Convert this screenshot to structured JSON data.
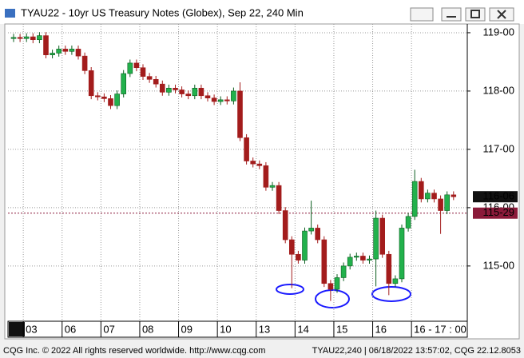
{
  "window": {
    "title": "TYAU22 - 10yr US Treasury Notes (Globex), Sep 22, 240 Min"
  },
  "footer": {
    "left": "CQG Inc. © 2022 All rights reserved worldwide. http://www.cqg.com",
    "right": "TYAU22,240 | 06/18/2022 13:57:02, CQG 22.12.8053"
  },
  "chart_data": {
    "type": "candlestick",
    "up_color": "#22b14c",
    "down_color": "#a31c1c",
    "grid": true,
    "categories": [
      null,
      null,
      "03",
      null,
      null,
      null,
      null,
      null,
      "06",
      null,
      null,
      null,
      null,
      null,
      "07",
      null,
      null,
      null,
      null,
      null,
      "08",
      null,
      null,
      null,
      null,
      null,
      "09",
      null,
      null,
      null,
      null,
      null,
      "10",
      null,
      null,
      null,
      null,
      null,
      "13",
      null,
      null,
      null,
      null,
      null,
      "14",
      null,
      null,
      null,
      null,
      null,
      "15",
      null,
      null,
      null,
      null,
      null,
      "16",
      null,
      null,
      null,
      null,
      null,
      "16 - 17 : 00",
      null,
      null,
      null,
      null,
      null,
      null
    ],
    "open": [
      118.9,
      118.92,
      118.9,
      118.93,
      118.88,
      118.95,
      118.62,
      118.65,
      118.72,
      118.68,
      118.72,
      118.6,
      118.35,
      117.92,
      117.9,
      117.87,
      117.75,
      117.95,
      118.3,
      118.48,
      118.4,
      118.25,
      118.2,
      118.12,
      117.98,
      118.05,
      118.02,
      117.95,
      117.92,
      118.05,
      117.92,
      117.88,
      117.82,
      117.85,
      117.83,
      118.0,
      117.2,
      116.8,
      116.75,
      116.72,
      116.35,
      116.38,
      115.95,
      115.45,
      115.2,
      115.1,
      115.6,
      115.65,
      115.45,
      114.7,
      114.6,
      114.8,
      115.0,
      115.15,
      115.17,
      115.1,
      115.12,
      115.82,
      115.2,
      114.7,
      114.78,
      115.65,
      115.85,
      116.45,
      116.15,
      116.25,
      116.15,
      115.95,
      116.22
    ],
    "high": [
      118.98,
      118.98,
      118.99,
      118.99,
      119.01,
      119.01,
      118.71,
      118.78,
      118.78,
      118.78,
      118.78,
      118.66,
      118.41,
      117.98,
      117.96,
      117.93,
      118.01,
      118.36,
      118.54,
      118.54,
      118.46,
      118.31,
      118.26,
      118.18,
      118.11,
      118.11,
      118.08,
      118.01,
      118.11,
      118.11,
      117.98,
      117.94,
      117.91,
      117.91,
      118.06,
      118.15,
      117.26,
      116.86,
      116.81,
      116.78,
      116.44,
      116.44,
      116.01,
      115.51,
      115.26,
      115.66,
      116.12,
      115.71,
      115.51,
      114.76,
      114.86,
      115.06,
      115.21,
      115.23,
      115.23,
      115.18,
      115.95,
      115.88,
      115.26,
      114.84,
      115.71,
      115.91,
      116.65,
      116.51,
      116.31,
      116.31,
      116.21,
      116.28,
      116.28
    ],
    "low": [
      118.84,
      118.84,
      118.84,
      118.82,
      118.82,
      118.56,
      118.56,
      118.59,
      118.62,
      118.62,
      118.54,
      118.29,
      117.86,
      117.84,
      117.81,
      117.69,
      117.69,
      117.89,
      118.24,
      118.34,
      118.19,
      118.14,
      118.06,
      117.92,
      117.92,
      117.96,
      117.89,
      117.86,
      117.86,
      117.86,
      117.82,
      117.76,
      117.76,
      117.77,
      117.77,
      117.14,
      116.74,
      116.69,
      116.66,
      116.29,
      116.29,
      115.89,
      115.39,
      114.62,
      115.04,
      115.04,
      115.54,
      115.39,
      114.64,
      114.4,
      114.54,
      114.74,
      114.94,
      115.09,
      115.04,
      115.04,
      114.65,
      115.14,
      114.5,
      114.64,
      114.72,
      115.59,
      115.79,
      116.09,
      116.09,
      116.09,
      115.55,
      115.89,
      116.13
    ],
    "close": [
      118.92,
      118.9,
      118.93,
      118.88,
      118.95,
      118.62,
      118.65,
      118.72,
      118.68,
      118.72,
      118.6,
      118.35,
      117.92,
      117.9,
      117.87,
      117.75,
      117.95,
      118.3,
      118.48,
      118.4,
      118.25,
      118.2,
      118.12,
      117.98,
      118.05,
      118.02,
      117.95,
      117.92,
      118.05,
      117.92,
      117.88,
      117.82,
      117.85,
      117.83,
      118.0,
      117.2,
      116.8,
      116.75,
      116.72,
      116.35,
      116.38,
      115.95,
      115.45,
      115.2,
      115.1,
      115.6,
      115.65,
      115.45,
      114.7,
      114.6,
      114.8,
      115.0,
      115.15,
      115.17,
      115.1,
      115.12,
      115.82,
      115.2,
      114.7,
      114.78,
      115.65,
      115.85,
      116.45,
      116.15,
      116.25,
      116.15,
      115.95,
      116.22,
      116.1875
    ],
    "ylim": [
      114.08,
      119.15
    ],
    "yticks": [
      {
        "value": 115,
        "label": "115-00"
      },
      {
        "value": 116,
        "label": "116-00"
      },
      {
        "value": 117,
        "label": "117-00"
      },
      {
        "value": 118,
        "label": "118-00"
      },
      {
        "value": 119,
        "label": "119-00"
      }
    ],
    "last_price": {
      "value": 116.1875,
      "label": "116-06"
    },
    "reference_line": {
      "value": 115.90625,
      "label": "115-29"
    }
  }
}
